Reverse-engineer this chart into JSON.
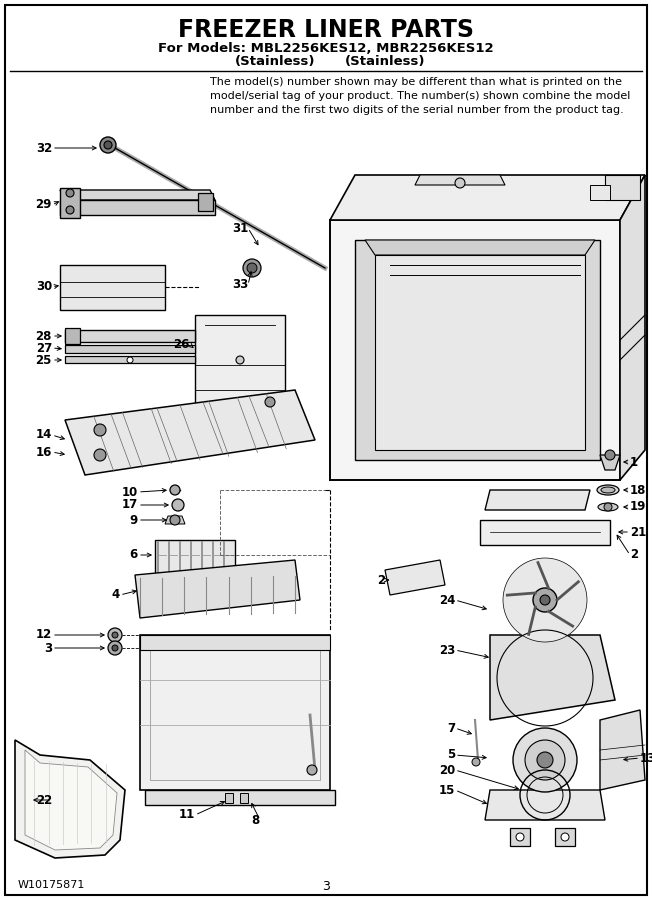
{
  "title_line1": "FREEZER LINER PARTS",
  "title_line2": "For Models: MBL2256KES12, MBR2256KES12",
  "title_line3_left": "(Stainless)",
  "title_line3_right": "(Stainless)",
  "disclaimer": "The model(s) number shown may be different than what is printed on the\nmodel/serial tag of your product. The number(s) shown combine the model\nnumber and the first two digits of the serial number from the product tag.",
  "footer_left": "W10175871",
  "footer_center": "3",
  "bg_color": "#ffffff",
  "border_color": "#000000",
  "text_color": "#000000",
  "figwidth": 6.52,
  "figheight": 9.0,
  "dpi": 100
}
